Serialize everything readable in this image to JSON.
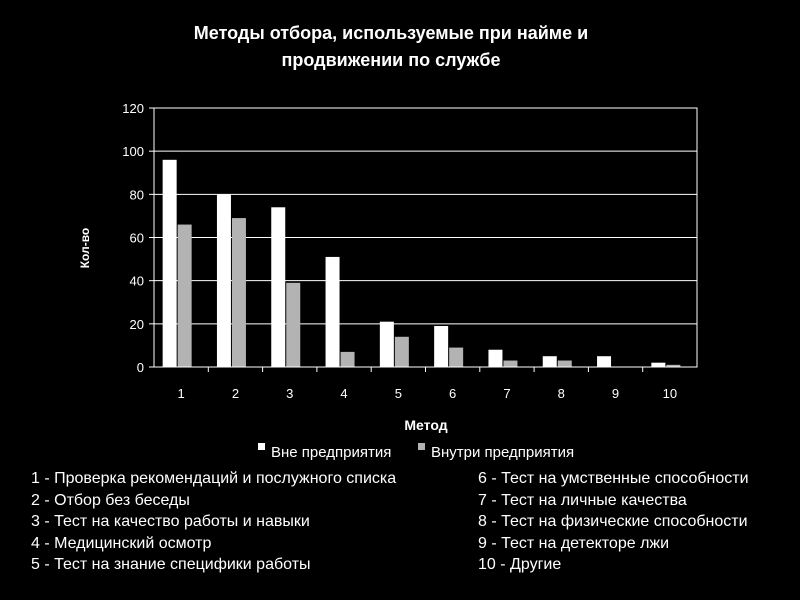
{
  "chart_data": {
    "type": "bar",
    "title_lines": [
      "Методы отбора, используемые при найме и",
      "продвижении по службе"
    ],
    "ylabel": "Кол-во",
    "xlabel": "Метод",
    "ylim": [
      0,
      120
    ],
    "yticks": [
      0,
      20,
      40,
      60,
      80,
      100,
      120
    ],
    "grid": true,
    "legend_position": "bottom",
    "categories": [
      "1",
      "2",
      "3",
      "4",
      "5",
      "6",
      "7",
      "8",
      "9",
      "10"
    ],
    "series": [
      {
        "name": "Вне предприятия",
        "color": "#ffffff",
        "values": [
          96,
          80,
          74,
          51,
          21,
          19,
          8,
          5,
          5,
          2
        ]
      },
      {
        "name": "Внутри предприятия",
        "color": "#b3b3b3",
        "values": [
          66,
          69,
          39,
          7,
          14,
          9,
          3,
          3,
          0,
          1
        ]
      }
    ]
  },
  "methods": {
    "left": [
      "1 - Проверка рекомендаций и послужного списка",
      "2 - Отбор без беседы",
      "3 - Тест на качество работы и навыки",
      "4 - Медицинский осмотр",
      "5 - Тест на знание специфики работы"
    ],
    "right": [
      "6 - Тест на умственные способности",
      "7 - Тест на личные качества",
      "8 - Тест на физические способности",
      "9 - Тест на детекторе лжи",
      "10 - Другие"
    ]
  }
}
